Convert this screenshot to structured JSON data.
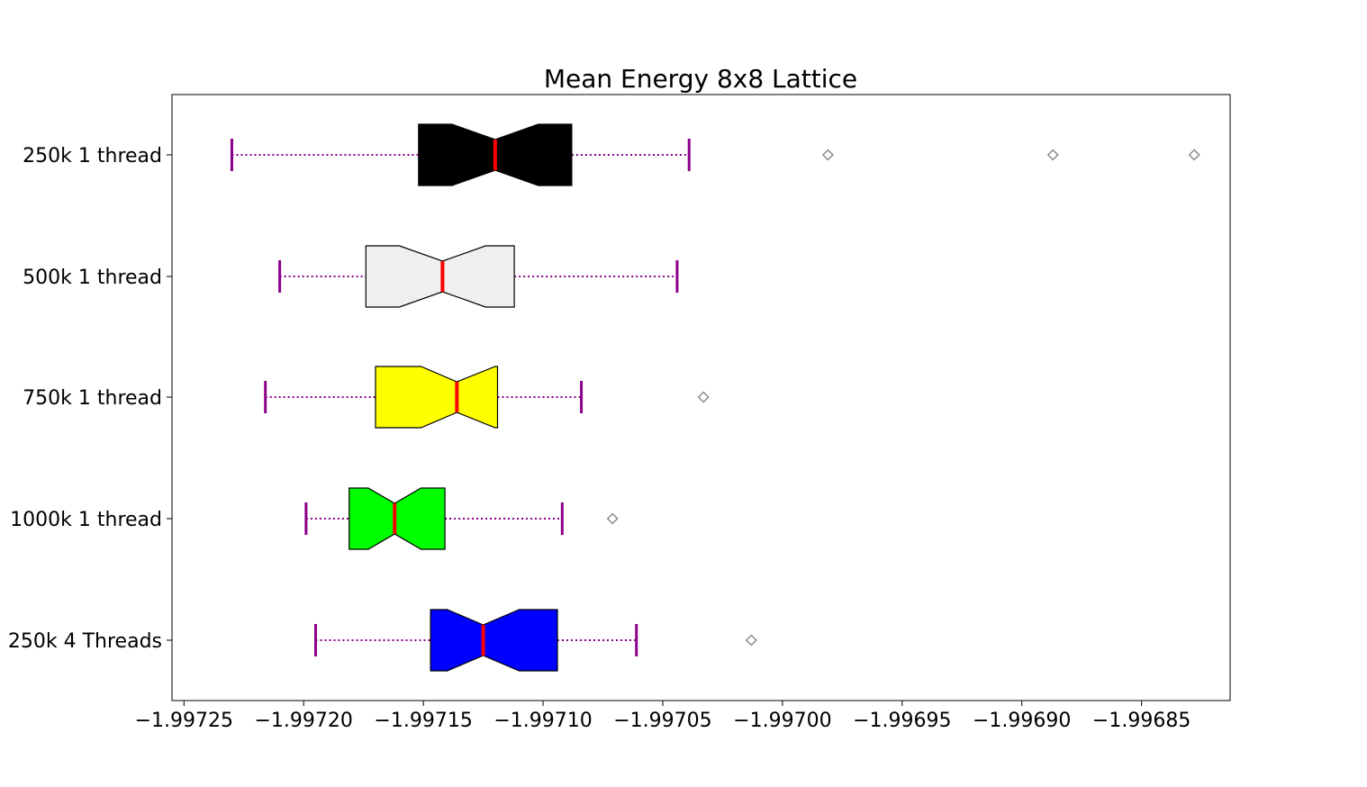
{
  "chart_data": {
    "type": "boxplot",
    "orientation": "horizontal",
    "notched": true,
    "title": "Mean Energy 8x8 Lattice",
    "xlabel": "",
    "ylabel": "",
    "xlim": [
      -1.997255,
      -1.996813
    ],
    "xticks": [
      -1.99725,
      -1.9972,
      -1.99715,
      -1.9971,
      -1.99705,
      -1.997,
      -1.99695,
      -1.9969,
      -1.99685
    ],
    "xtick_labels": [
      "−1.99725",
      "−1.99720",
      "−1.99715",
      "−1.99710",
      "−1.99705",
      "−1.99700",
      "−1.99695",
      "−1.99690",
      "−1.99685"
    ],
    "grid": false,
    "categories": [
      "250k 1 thread",
      "500k 1 thread",
      "750k 1 thread",
      "1000k 1 thread",
      "250k 4 Threads"
    ],
    "boxes": [
      {
        "label": "250k 1 thread",
        "color": "#000000",
        "whisker_low": -1.99723,
        "q1": -1.997152,
        "notch_low": -1.997138,
        "median": -1.99712,
        "notch_high": -1.997102,
        "q3": -1.997088,
        "whisker_high": -1.997039,
        "outliers": [
          -1.996981,
          -1.996887,
          -1.996828
        ]
      },
      {
        "label": "500k 1 thread",
        "color": "#efefef",
        "whisker_low": -1.99721,
        "q1": -1.997174,
        "notch_low": -1.99716,
        "median": -1.997142,
        "notch_high": -1.997124,
        "q3": -1.997112,
        "whisker_high": -1.997044,
        "outliers": []
      },
      {
        "label": "750k 1 thread",
        "color": "#ffff00",
        "whisker_low": -1.997216,
        "q1": -1.99717,
        "notch_low": -1.997151,
        "median": -1.997136,
        "notch_high": -1.99712,
        "q3": -1.997119,
        "whisker_high": -1.997084,
        "outliers": [
          -1.997033
        ]
      },
      {
        "label": "1000k 1 thread",
        "color": "#00ff00",
        "whisker_low": -1.997199,
        "q1": -1.997181,
        "notch_low": -1.997173,
        "median": -1.997162,
        "notch_high": -1.997151,
        "q3": -1.997141,
        "whisker_high": -1.997092,
        "outliers": [
          -1.997071
        ]
      },
      {
        "label": "250k 4 Threads",
        "color": "#0000ff",
        "whisker_low": -1.997195,
        "q1": -1.997147,
        "notch_low": -1.99714,
        "median": -1.997125,
        "notch_high": -1.99711,
        "q3": -1.997094,
        "whisker_high": -1.997061,
        "outliers": [
          -1.997013
        ]
      }
    ],
    "style": {
      "median_color": "#ff0000",
      "whisker_color": "#8b008b",
      "outlier_color": "#808080",
      "box_edge_color": "#000000"
    }
  }
}
